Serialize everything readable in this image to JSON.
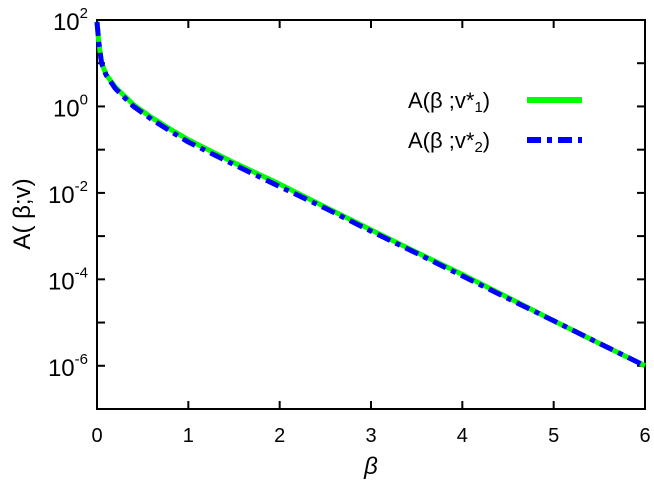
{
  "chart_data": {
    "type": "line",
    "title": "",
    "xlabel": "β",
    "ylabel": "A( β;v)",
    "xlim": [
      0,
      6
    ],
    "ylim": [
      1e-07,
      100
    ],
    "yscale": "log",
    "grid": false,
    "legend_placement": "top-right",
    "x_ticks": [
      "0",
      "1",
      "2",
      "3",
      "4",
      "5",
      "6"
    ],
    "y_ticks": [
      {
        "base": "10",
        "exp": "2",
        "value": 100
      },
      {
        "base": "10",
        "exp": "0",
        "value": 1
      },
      {
        "base": "10",
        "exp": "-2",
        "value": 0.01
      },
      {
        "base": "10",
        "exp": "-4",
        "value": 0.0001
      },
      {
        "base": "10",
        "exp": "-6",
        "value": 1e-06
      }
    ],
    "series": [
      {
        "name_main": "A(β ;v*",
        "name_sub": "1",
        "name_end": ")",
        "color": "#00ff00",
        "style": "solid",
        "x": [
          0,
          0.02,
          0.05,
          0.1,
          0.2,
          0.4,
          0.6,
          0.8,
          1.0,
          1.5,
          2,
          2.5,
          3,
          3.5,
          4,
          4.5,
          5,
          5.5,
          6
        ],
        "y": [
          90,
          30,
          10,
          5.5,
          2.8,
          1.1,
          0.55,
          0.3,
          0.17,
          0.05,
          0.016,
          0.0047,
          0.0014,
          0.00042,
          0.00013,
          3.8e-05,
          1.1e-05,
          3.3e-06,
          1e-06
        ]
      },
      {
        "name_main": "A(β ;v*",
        "name_sub": "2",
        "name_end": ")",
        "color": "#0000ff",
        "style": "dash-dot",
        "x": [
          0,
          0.02,
          0.05,
          0.1,
          0.2,
          0.4,
          0.6,
          0.8,
          1.0,
          1.5,
          2,
          2.5,
          3,
          3.5,
          4,
          4.5,
          5,
          5.5,
          6
        ],
        "y": [
          90,
          30,
          10,
          5.3,
          2.6,
          1.0,
          0.5,
          0.27,
          0.15,
          0.045,
          0.014,
          0.0044,
          0.0013,
          0.0004,
          0.00012,
          3.6e-05,
          1.1e-05,
          3.3e-06,
          1e-06
        ]
      }
    ]
  }
}
